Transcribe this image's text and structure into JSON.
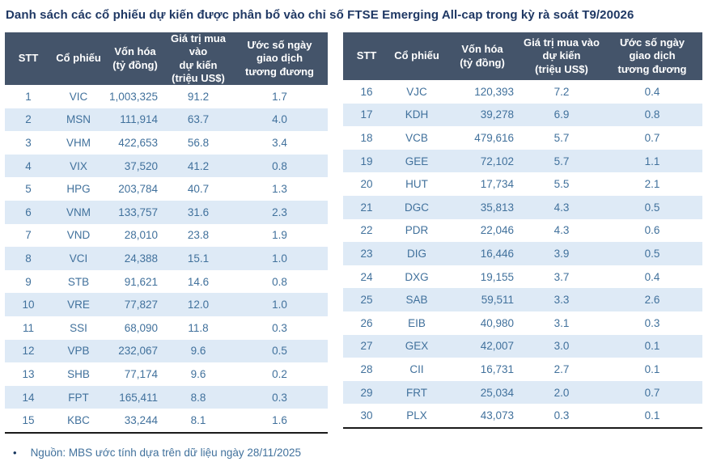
{
  "title": "Danh sách các cổ phiếu dự kiến được phân bổ vào chỉ số FTSE Emerging All-cap trong kỳ rà soát T9/20026",
  "columns": [
    "STT",
    "Cổ phiếu",
    "Vốn hóa\n(tỷ đồng)",
    "Giá trị mua vào\ndự kiến\n(triệu US$)",
    "Ước số ngày\ngiao dịch\ntương đương"
  ],
  "tables": [
    {
      "rows": [
        [
          "1",
          "VIC",
          "1,003,325",
          "91.2",
          "1.7"
        ],
        [
          "2",
          "MSN",
          "111,914",
          "63.7",
          "4.0"
        ],
        [
          "3",
          "VHM",
          "422,653",
          "56.8",
          "3.4"
        ],
        [
          "4",
          "VIX",
          "37,520",
          "41.2",
          "0.8"
        ],
        [
          "5",
          "HPG",
          "203,784",
          "40.7",
          "1.3"
        ],
        [
          "6",
          "VNM",
          "133,757",
          "31.6",
          "2.3"
        ],
        [
          "7",
          "VND",
          "28,010",
          "23.8",
          "1.9"
        ],
        [
          "8",
          "VCI",
          "24,388",
          "15.1",
          "1.0"
        ],
        [
          "9",
          "STB",
          "91,621",
          "14.6",
          "0.8"
        ],
        [
          "10",
          "VRE",
          "77,827",
          "12.0",
          "1.0"
        ],
        [
          "11",
          "SSI",
          "68,090",
          "11.8",
          "0.3"
        ],
        [
          "12",
          "VPB",
          "232,067",
          "9.6",
          "0.5"
        ],
        [
          "13",
          "SHB",
          "77,174",
          "9.6",
          "0.2"
        ],
        [
          "14",
          "FPT",
          "165,411",
          "8.8",
          "0.3"
        ],
        [
          "15",
          "KBC",
          "33,244",
          "8.1",
          "1.6"
        ]
      ]
    },
    {
      "rows": [
        [
          "16",
          "VJC",
          "120,393",
          "7.2",
          "0.4"
        ],
        [
          "17",
          "KDH",
          "39,278",
          "6.9",
          "0.8"
        ],
        [
          "18",
          "VCB",
          "479,616",
          "5.7",
          "0.7"
        ],
        [
          "19",
          "GEE",
          "72,102",
          "5.7",
          "1.1"
        ],
        [
          "20",
          "HUT",
          "17,734",
          "5.5",
          "2.1"
        ],
        [
          "21",
          "DGC",
          "35,813",
          "4.3",
          "0.5"
        ],
        [
          "22",
          "PDR",
          "22,046",
          "4.3",
          "0.6"
        ],
        [
          "23",
          "DIG",
          "16,446",
          "3.9",
          "0.5"
        ],
        [
          "24",
          "DXG",
          "19,155",
          "3.7",
          "0.4"
        ],
        [
          "25",
          "SAB",
          "59,511",
          "3.3",
          "2.6"
        ],
        [
          "26",
          "EIB",
          "40,980",
          "3.1",
          "0.3"
        ],
        [
          "27",
          "GEX",
          "42,007",
          "3.0",
          "0.1"
        ],
        [
          "28",
          "CII",
          "16,731",
          "2.7",
          "0.1"
        ],
        [
          "29",
          "FRT",
          "25,034",
          "2.0",
          "0.7"
        ],
        [
          "30",
          "PLX",
          "43,073",
          "0.3",
          "0.1"
        ]
      ]
    }
  ],
  "footer": {
    "bullet": "•",
    "note": "Nguồn: MBS ước tính dựa trên dữ liệu ngày 28/11/2025"
  },
  "colors": {
    "title_text": "#1F3864",
    "header_bg": "#44546A",
    "header_text": "#FFFFFF",
    "alt_row_bg": "#DEEAF6",
    "body_text": "#41719C",
    "table_bottom_border": "#1A1A1A"
  }
}
